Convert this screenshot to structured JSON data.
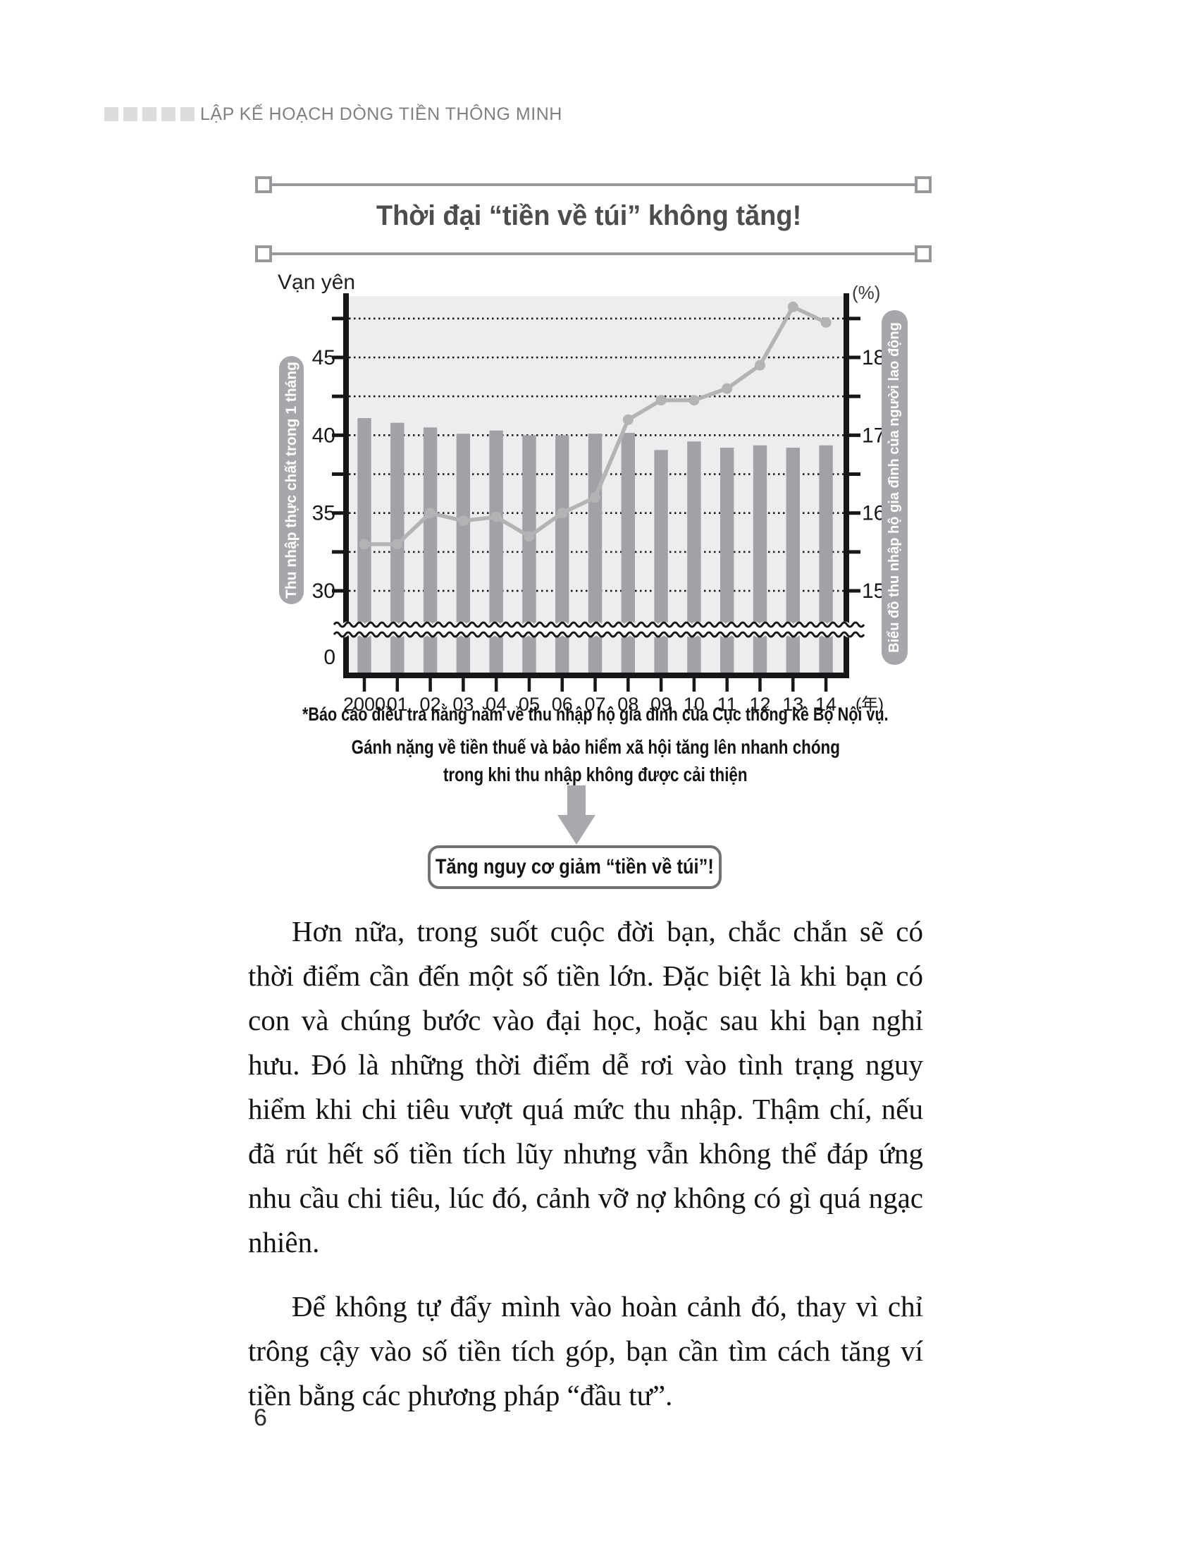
{
  "header": {
    "title": "LẬP KẾ HOẠCH DÒNG TIỀN THÔNG MINH"
  },
  "figure": {
    "title": "Thời đại “tiền về túi” không tăng!",
    "footnote": "*Báo cáo điều tra hằng năm về thu nhập hộ gia đình của Cục thống kê Bộ Nội vụ.",
    "caption_lines": [
      "Gánh nặng về tiền thuế và bảo hiểm xã hội tăng lên nhanh chóng",
      "trong khi thu nhập không được cải thiện"
    ],
    "conclusion": "Tăng nguy cơ giảm “tiền về túi”!"
  },
  "chart_data": {
    "type": "combo",
    "title": "Thời đại “tiền về túi” không tăng!",
    "categories": [
      "2000",
      "01",
      "02",
      "03",
      "04",
      "05",
      "06",
      "07",
      "08",
      "09",
      "10",
      "11",
      "12",
      "13",
      "14"
    ],
    "x_unit_suffix": "(年)",
    "series": [
      {
        "name": "Thu nhập thực chất trong 1 tháng",
        "type": "bar",
        "axis": "left",
        "unit": "Vạn yên",
        "values": [
          41.1,
          40.8,
          40.5,
          40.1,
          40.3,
          40.0,
          40.0,
          40.1,
          40.15,
          39.05,
          39.6,
          39.2,
          39.35,
          39.2,
          39.35
        ]
      },
      {
        "name": "Biểu đồ thu nhập hộ gia đình của người lao động",
        "type": "line",
        "axis": "right",
        "unit": "%",
        "values": [
          15.6,
          15.6,
          16.0,
          15.9,
          15.95,
          15.7,
          16.0,
          16.2,
          17.2,
          17.45,
          17.45,
          17.6,
          17.9,
          18.65,
          18.45
        ]
      }
    ],
    "left_axis": {
      "label": "Vạn yên",
      "ticks": [
        45,
        40,
        35,
        30,
        0
      ],
      "axis_break": true
    },
    "right_axis": {
      "label": "(%)",
      "ticks": [
        18,
        17,
        16,
        15
      ]
    },
    "gridline_values_left": [
      47.5,
      45,
      42.5,
      40,
      37.5,
      35,
      32.5,
      30
    ],
    "scale_alignment": "left 45 vạn yên = right 18 %",
    "grid": true,
    "legend_position": "side-pills",
    "colors": {
      "bar": "#a1a1a6",
      "line": "#b3b3b6",
      "plot_bg": "#ededef",
      "axis": "#17171a",
      "pill": "#a7a7ab"
    }
  },
  "body": {
    "paragraphs": [
      "Hơn nữa, trong suốt cuộc đời bạn, chắc chắn sẽ có thời điểm cần đến một số tiền lớn. Đặc biệt là khi bạn có con và chúng bước vào đại học, hoặc sau khi bạn nghỉ hưu. Đó là những thời điểm dễ rơi vào tình trạng nguy hiểm khi chi tiêu vượt quá mức thu nhập. Thậm chí, nếu đã rút hết số tiền tích lũy nhưng vẫn không thể đáp ứng nhu cầu chi tiêu, lúc đó, cảnh vỡ nợ không có gì quá ngạc nhiên.",
      "Để không tự đẩy mình vào hoàn cảnh đó, thay vì chỉ trông cậy vào số tiền tích góp, bạn cần tìm cách tăng ví tiền bằng các phương pháp “đầu tư”."
    ]
  },
  "page": {
    "number": "6"
  }
}
